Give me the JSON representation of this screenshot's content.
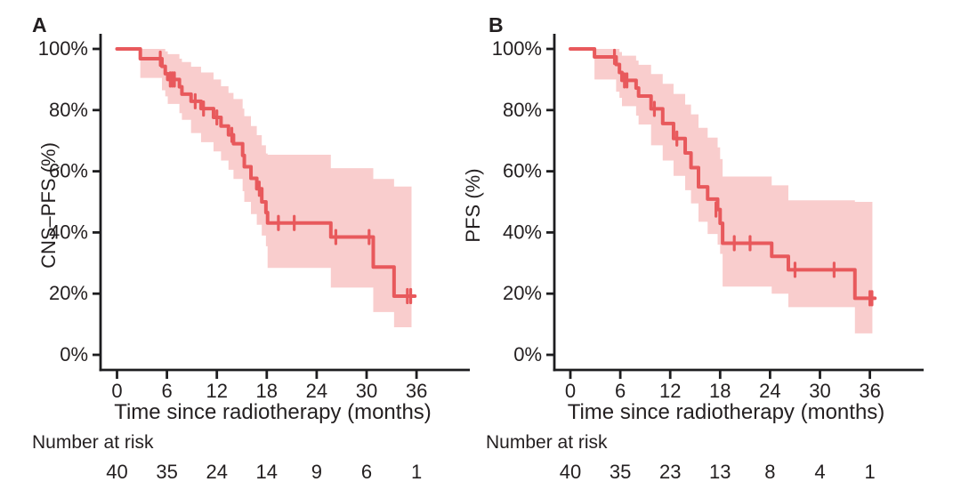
{
  "figure": {
    "background": "#ffffff",
    "description": "Kaplan-Meier survival curves with 95% confidence bands"
  },
  "colors": {
    "curve": "#e8595c",
    "band": "#f9cdcd",
    "axis": "#1d1d1f",
    "text": "#231f20"
  },
  "chart_data": [
    {
      "type": "line",
      "subtype": "kaplan_meier_step_with_ci_band",
      "title": "A",
      "ylabel": "CNS–PFS (%)",
      "xlabel": "Time since radiotherapy (months)",
      "xlim": [
        0,
        40
      ],
      "ylim": [
        0,
        100
      ],
      "x_ticks": [
        0,
        6,
        12,
        18,
        24,
        30,
        36
      ],
      "x_tick_labels": [
        "0",
        "6",
        "12",
        "18",
        "24",
        "30",
        "36"
      ],
      "y_ticks": [
        100,
        80,
        60,
        40,
        20,
        0
      ],
      "y_tick_labels": [
        "100%",
        "80%",
        "60%",
        "40%",
        "20%",
        "0%"
      ],
      "legend": null,
      "grid": false,
      "number_at_risk": {
        "label": "Number at risk",
        "times": [
          0,
          6,
          12,
          18,
          24,
          30,
          36
        ],
        "counts": [
          40,
          35,
          24,
          14,
          9,
          6,
          1
        ]
      },
      "series": [
        {
          "name": "CNS-PFS",
          "steps": [
            [
              0,
              100
            ],
            [
              2.8,
              96.8
            ],
            [
              5.4,
              94.3
            ],
            [
              5.8,
              91.9
            ],
            [
              6.1,
              90.0
            ],
            [
              7.5,
              87.6
            ],
            [
              7.8,
              85.2
            ],
            [
              8.9,
              82.9
            ],
            [
              10.1,
              80.5
            ],
            [
              11.6,
              77.6
            ],
            [
              12.5,
              74.8
            ],
            [
              13.4,
              71.9
            ],
            [
              14.0,
              69.0
            ],
            [
              15.1,
              65.2
            ],
            [
              15.3,
              61.5
            ],
            [
              16.1,
              57.7
            ],
            [
              16.8,
              54.3
            ],
            [
              17.4,
              50.0
            ],
            [
              17.9,
              46.5
            ],
            [
              18.1,
              43.1
            ],
            [
              25.7,
              38.5
            ],
            [
              30.8,
              28.7
            ],
            [
              33.3,
              19.2
            ]
          ],
          "end_time": 35.8,
          "censors": [
            [
              5.2,
              96.8
            ],
            [
              6.4,
              90.0
            ],
            [
              6.65,
              90.0
            ],
            [
              6.9,
              90.0
            ],
            [
              9.4,
              82.9
            ],
            [
              10.4,
              80.5
            ],
            [
              12.0,
              77.6
            ],
            [
              13.8,
              71.9
            ],
            [
              17.1,
              54.3
            ],
            [
              19.4,
              43.1
            ],
            [
              21.3,
              43.1
            ],
            [
              26.3,
              38.5
            ],
            [
              30.3,
              38.5
            ],
            [
              34.9,
              19.2
            ],
            [
              35.3,
              19.2
            ]
          ],
          "band": [
            [
              0,
              100,
              100
            ],
            [
              2.8,
              100,
              90.5
            ],
            [
              5.4,
              100,
              86.5
            ],
            [
              5.8,
              99.2,
              84.5
            ],
            [
              6.1,
              98.3,
              82.0
            ],
            [
              7.5,
              96.8,
              79.0
            ],
            [
              7.8,
              95.7,
              76.8
            ],
            [
              8.9,
              94.2,
              72.5
            ],
            [
              10.1,
              92.3,
              69.5
            ],
            [
              11.6,
              90.0,
              66.5
            ],
            [
              12.5,
              87.8,
              63.5
            ],
            [
              13.4,
              85.6,
              60.5
            ],
            [
              14.0,
              83.6,
              57.5
            ],
            [
              15.1,
              80.5,
              53.5
            ],
            [
              15.3,
              78.0,
              50.0
            ],
            [
              16.1,
              74.8,
              46.0
            ],
            [
              16.8,
              71.8,
              42.5
            ],
            [
              17.4,
              68.5,
              39.0
            ],
            [
              17.9,
              65.8,
              35.5
            ],
            [
              18.1,
              65.4,
              28.4
            ],
            [
              25.7,
              61.0,
              22.0
            ],
            [
              30.8,
              57.5,
              14.0
            ],
            [
              33.3,
              55.0,
              9.0
            ]
          ],
          "band_end": 35.4
        }
      ]
    },
    {
      "type": "line",
      "subtype": "kaplan_meier_step_with_ci_band",
      "title": "B",
      "ylabel": "PFS (%)",
      "xlabel": "Time since radiotherapy (months)",
      "xlim": [
        0,
        40
      ],
      "ylim": [
        0,
        100
      ],
      "x_ticks": [
        0,
        6,
        12,
        18,
        24,
        30,
        36
      ],
      "x_tick_labels": [
        "0",
        "6",
        "12",
        "18",
        "24",
        "30",
        "36"
      ],
      "y_ticks": [
        100,
        80,
        60,
        40,
        20,
        0
      ],
      "y_tick_labels": [
        "100%",
        "80%",
        "60%",
        "40%",
        "20%",
        "0%"
      ],
      "legend": null,
      "grid": false,
      "number_at_risk": {
        "label": "Number at risk",
        "times": [
          0,
          6,
          12,
          18,
          24,
          30,
          36
        ],
        "counts": [
          40,
          35,
          23,
          13,
          8,
          4,
          1
        ]
      },
      "series": [
        {
          "name": "PFS",
          "steps": [
            [
              0,
              100
            ],
            [
              2.9,
              97.4
            ],
            [
              5.5,
              94.9
            ],
            [
              5.9,
              92.3
            ],
            [
              6.2,
              89.7
            ],
            [
              7.9,
              87.2
            ],
            [
              8.2,
              84.6
            ],
            [
              9.7,
              80.4
            ],
            [
              11.1,
              75.6
            ],
            [
              12.4,
              70.7
            ],
            [
              13.8,
              66.0
            ],
            [
              14.5,
              61.2
            ],
            [
              15.4,
              54.9
            ],
            [
              16.5,
              50.9
            ],
            [
              17.7,
              47.5
            ],
            [
              18.0,
              43.0
            ],
            [
              18.3,
              36.5
            ],
            [
              24.2,
              32.2
            ],
            [
              26.2,
              27.8
            ],
            [
              34.2,
              18.5
            ]
          ],
          "end_time": 36.6,
          "censors": [
            [
              5.3,
              97.4
            ],
            [
              6.5,
              89.7
            ],
            [
              6.8,
              89.7
            ],
            [
              10.1,
              80.4
            ],
            [
              12.8,
              70.7
            ],
            [
              17.5,
              47.5
            ],
            [
              19.7,
              36.5
            ],
            [
              21.6,
              36.5
            ],
            [
              27.0,
              27.8
            ],
            [
              31.7,
              27.8
            ],
            [
              36.0,
              18.5
            ],
            [
              36.25,
              18.5
            ]
          ],
          "band": [
            [
              0,
              100,
              100
            ],
            [
              2.9,
              100,
              90.0
            ],
            [
              5.5,
              100,
              86.0
            ],
            [
              5.9,
              99.0,
              84.0
            ],
            [
              6.2,
              97.8,
              81.3
            ],
            [
              7.9,
              96.2,
              78.2
            ],
            [
              8.2,
              94.8,
              75.3
            ],
            [
              9.7,
              91.8,
              68.5
            ],
            [
              11.1,
              88.6,
              63.5
            ],
            [
              12.4,
              85.3,
              58.5
            ],
            [
              13.8,
              81.8,
              53.8
            ],
            [
              14.5,
              78.6,
              49.5
            ],
            [
              15.4,
              74.2,
              43.5
            ],
            [
              16.5,
              71.0,
              39.5
            ],
            [
              17.7,
              67.8,
              36.0
            ],
            [
              18.0,
              64.0,
              33.0
            ],
            [
              18.3,
              58.3,
              22.3
            ],
            [
              24.2,
              55.4,
              20.0
            ],
            [
              26.2,
              50.5,
              15.6
            ],
            [
              34.2,
              50.0,
              7.0
            ]
          ],
          "band_end": 36.3
        }
      ]
    }
  ]
}
